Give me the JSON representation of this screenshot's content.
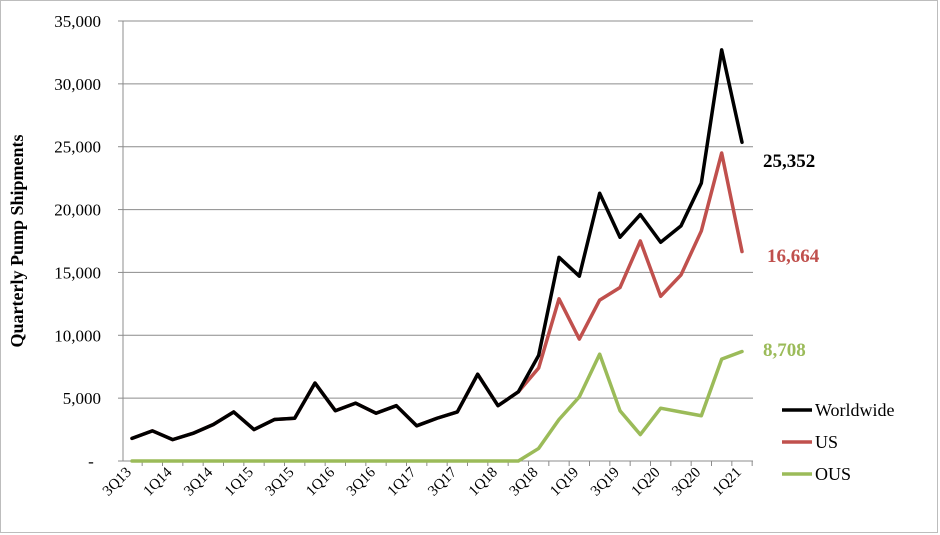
{
  "chart_data": {
    "type": "line",
    "title": "",
    "xlabel": "",
    "ylabel": "Quarterly Pump Shipments",
    "ylim": [
      0,
      35000
    ],
    "yticks": [
      0,
      5000,
      10000,
      15000,
      20000,
      25000,
      30000,
      35000
    ],
    "ytick_labels": [
      "-",
      "5,000",
      "10,000",
      "15,000",
      "20,000",
      "25,000",
      "30,000",
      "35,000"
    ],
    "grid": true,
    "legend_position": "bottom-right",
    "x": [
      "3Q13",
      "4Q13",
      "1Q14",
      "2Q14",
      "3Q14",
      "4Q14",
      "1Q15",
      "2Q15",
      "3Q15",
      "4Q15",
      "1Q16",
      "2Q16",
      "3Q16",
      "4Q16",
      "1Q17",
      "2Q17",
      "3Q17",
      "4Q17",
      "1Q18",
      "2Q18",
      "3Q18",
      "4Q18",
      "1Q19",
      "2Q19",
      "3Q19",
      "4Q19",
      "1Q20",
      "2Q20",
      "3Q20",
      "4Q20",
      "1Q21"
    ],
    "xtick_labels": [
      "3Q13",
      "1Q14",
      "3Q14",
      "1Q15",
      "3Q15",
      "1Q16",
      "3Q16",
      "1Q17",
      "3Q17",
      "1Q18",
      "3Q18",
      "1Q19",
      "3Q19",
      "1Q20",
      "3Q20",
      "1Q21"
    ],
    "series": [
      {
        "name": "Worldwide",
        "color": "#000000",
        "values": [
          1800,
          2400,
          1700,
          2200,
          2900,
          3900,
          2500,
          3300,
          3400,
          6200,
          4000,
          4600,
          3800,
          4400,
          2800,
          3400,
          3900,
          6900,
          4400,
          5500,
          8400,
          16200,
          14700,
          21300,
          17800,
          19600,
          17400,
          18700,
          22100,
          32700,
          25352
        ],
        "end_label": "25,352"
      },
      {
        "name": "US",
        "color": "#c0504d",
        "values": [
          1800,
          2400,
          1700,
          2200,
          2900,
          3900,
          2500,
          3300,
          3400,
          6200,
          4000,
          4600,
          3800,
          4400,
          2800,
          3400,
          3900,
          6900,
          4400,
          5500,
          7400,
          12900,
          9700,
          12800,
          13800,
          17500,
          13100,
          14800,
          18300,
          24500,
          16664
        ],
        "end_label": "16,664"
      },
      {
        "name": "OUS",
        "color": "#9bbb59",
        "values": [
          0,
          0,
          0,
          0,
          0,
          0,
          0,
          0,
          0,
          0,
          0,
          0,
          0,
          0,
          0,
          0,
          0,
          0,
          0,
          0,
          1000,
          3300,
          5100,
          8500,
          4000,
          2100,
          4200,
          3900,
          3600,
          8100,
          8708
        ],
        "end_label": "8,708"
      }
    ]
  }
}
